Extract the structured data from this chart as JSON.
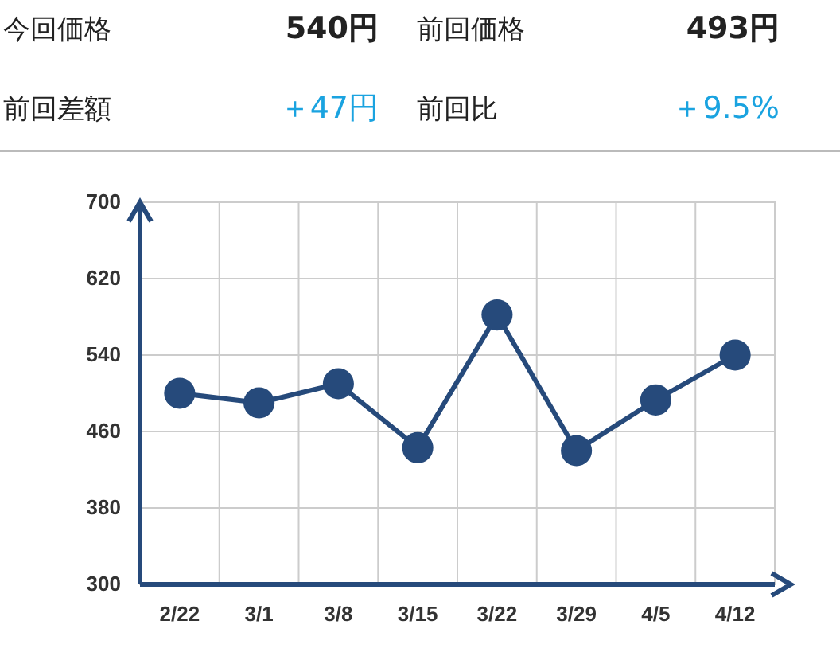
{
  "chart_data": {
    "type": "line",
    "annotations": [
      "今回価格",
      "540円",
      "前回価格",
      "493円",
      "前回差額",
      "＋47円",
      "前回比",
      "＋9.5%"
    ],
    "categories": [
      "2/22",
      "3/1",
      "3/8",
      "3/15",
      "3/22",
      "3/29",
      "4/5",
      "4/12"
    ],
    "series": [
      {
        "color": "#264a7b",
        "values": [
          500,
          490,
          510,
          443,
          582,
          440,
          493,
          540
        ]
      }
    ],
    "ylim": [
      300,
      700
    ],
    "yticks": [
      300,
      380,
      460,
      540,
      620,
      700
    ],
    "grid": true,
    "marker": "circle",
    "line_style": "solid"
  }
}
